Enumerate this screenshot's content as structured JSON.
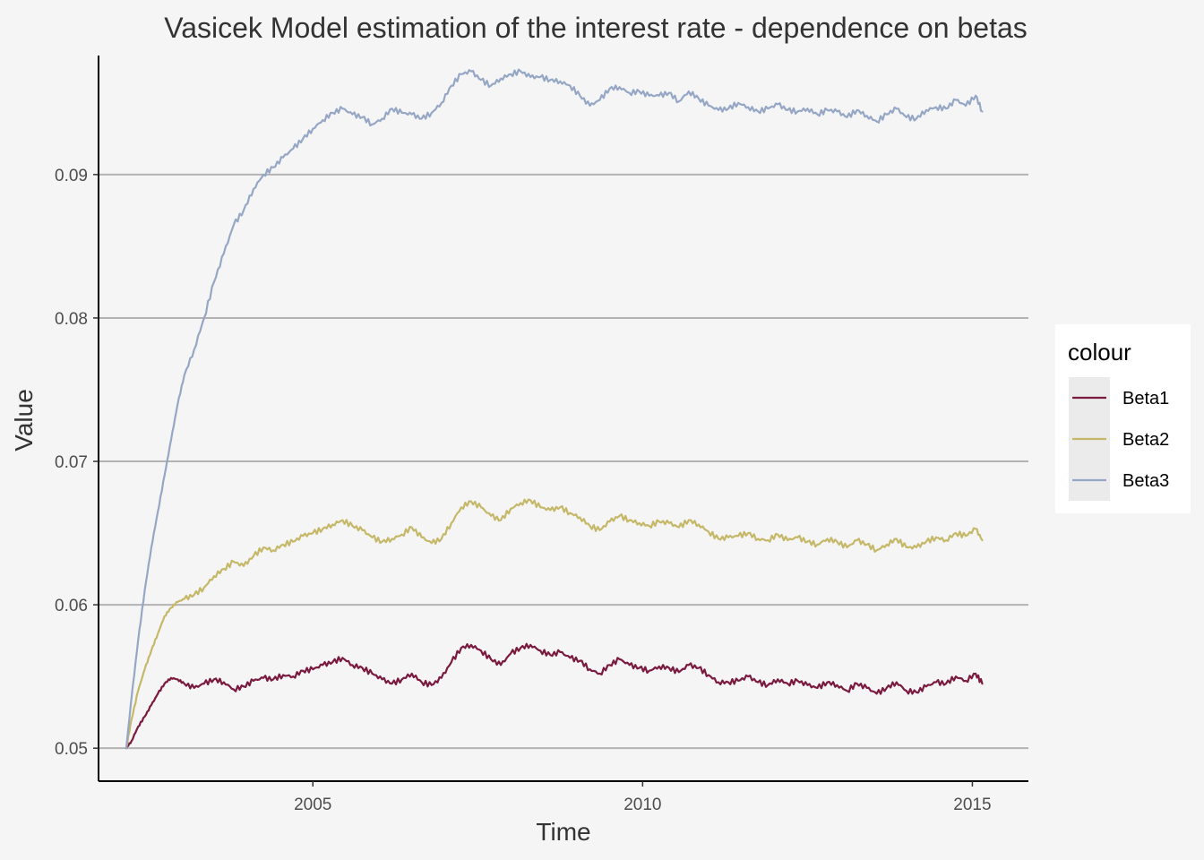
{
  "chart_data": {
    "type": "line",
    "title": "Vasicek Model estimation of the interest rate - dependence on betas",
    "xlabel": "Time",
    "ylabel": "Value",
    "xlim": [
      2001.75,
      2015.85
    ],
    "ylim": [
      0.0477,
      0.0983
    ],
    "x_ticks": [
      2005,
      2010,
      2015
    ],
    "x_tick_labels": [
      "2005",
      "2010",
      "2015"
    ],
    "y_ticks": [
      0.05,
      0.06,
      0.07,
      0.08,
      0.09
    ],
    "y_tick_labels": [
      "0.05",
      "0.06",
      "0.07",
      "0.08",
      "0.09"
    ],
    "grid": "horizontal-major",
    "legend": {
      "title": "colour",
      "position": "right"
    },
    "series": [
      {
        "name": "Beta1",
        "color": "#7b1a3f",
        "x": [
          2002.17,
          2002.25,
          2002.35,
          2002.45,
          2002.55,
          2002.65,
          2002.75,
          2002.85,
          2002.95,
          2003.05,
          2003.2,
          2003.35,
          2003.5,
          2003.65,
          2003.8,
          2003.95,
          2004.1,
          2004.25,
          2004.4,
          2004.55,
          2004.7,
          2004.85,
          2005.0,
          2005.15,
          2005.3,
          2005.45,
          2005.6,
          2005.75,
          2005.9,
          2006.05,
          2006.2,
          2006.35,
          2006.5,
          2006.65,
          2006.8,
          2006.95,
          2007.1,
          2007.25,
          2007.4,
          2007.55,
          2007.7,
          2007.85,
          2008.0,
          2008.15,
          2008.3,
          2008.45,
          2008.6,
          2008.75,
          2008.9,
          2009.05,
          2009.2,
          2009.35,
          2009.5,
          2009.65,
          2009.8,
          2009.95,
          2010.1,
          2010.25,
          2010.4,
          2010.55,
          2010.7,
          2010.85,
          2011.0,
          2011.15,
          2011.3,
          2011.45,
          2011.6,
          2011.75,
          2011.9,
          2012.05,
          2012.2,
          2012.35,
          2012.5,
          2012.65,
          2012.8,
          2012.95,
          2013.1,
          2013.25,
          2013.4,
          2013.55,
          2013.7,
          2013.85,
          2014.0,
          2014.15,
          2014.3,
          2014.45,
          2014.6,
          2014.75,
          2014.9,
          2015.05,
          2015.15
        ],
        "values": [
          0.05,
          0.0505,
          0.0515,
          0.0522,
          0.053,
          0.0538,
          0.0545,
          0.0549,
          0.0548,
          0.0545,
          0.0542,
          0.0545,
          0.0548,
          0.0546,
          0.0541,
          0.0543,
          0.0547,
          0.0549,
          0.0548,
          0.0551,
          0.055,
          0.0554,
          0.0555,
          0.0558,
          0.056,
          0.0563,
          0.0558,
          0.0556,
          0.0552,
          0.0548,
          0.0545,
          0.0548,
          0.0552,
          0.0546,
          0.0544,
          0.0549,
          0.056,
          0.057,
          0.0572,
          0.0568,
          0.0562,
          0.0558,
          0.0566,
          0.057,
          0.0572,
          0.0568,
          0.0565,
          0.0567,
          0.0563,
          0.0561,
          0.0555,
          0.0552,
          0.0558,
          0.0562,
          0.0558,
          0.0556,
          0.0554,
          0.0557,
          0.0556,
          0.0553,
          0.0558,
          0.0556,
          0.0551,
          0.0546,
          0.0546,
          0.0547,
          0.055,
          0.0546,
          0.0544,
          0.0548,
          0.0545,
          0.0547,
          0.0544,
          0.0542,
          0.0546,
          0.0544,
          0.054,
          0.0545,
          0.0542,
          0.0538,
          0.0542,
          0.0546,
          0.054,
          0.0539,
          0.0543,
          0.0546,
          0.0545,
          0.055,
          0.0547,
          0.0552,
          0.0545
        ]
      },
      {
        "name": "Beta2",
        "color": "#c5b869",
        "x": [
          2002.17,
          2002.25,
          2002.35,
          2002.45,
          2002.55,
          2002.65,
          2002.75,
          2002.85,
          2002.95,
          2003.05,
          2003.2,
          2003.35,
          2003.5,
          2003.65,
          2003.8,
          2003.95,
          2004.1,
          2004.25,
          2004.4,
          2004.55,
          2004.7,
          2004.85,
          2005.0,
          2005.15,
          2005.3,
          2005.45,
          2005.6,
          2005.75,
          2005.9,
          2006.05,
          2006.2,
          2006.35,
          2006.5,
          2006.65,
          2006.8,
          2006.95,
          2007.1,
          2007.25,
          2007.4,
          2007.55,
          2007.7,
          2007.85,
          2008.0,
          2008.15,
          2008.3,
          2008.45,
          2008.6,
          2008.75,
          2008.9,
          2009.05,
          2009.2,
          2009.35,
          2009.5,
          2009.65,
          2009.8,
          2009.95,
          2010.1,
          2010.25,
          2010.4,
          2010.55,
          2010.7,
          2010.85,
          2011.0,
          2011.15,
          2011.3,
          2011.45,
          2011.6,
          2011.75,
          2011.9,
          2012.05,
          2012.2,
          2012.35,
          2012.5,
          2012.65,
          2012.8,
          2012.95,
          2013.1,
          2013.25,
          2013.4,
          2013.55,
          2013.7,
          2013.85,
          2014.0,
          2014.15,
          2014.3,
          2014.45,
          2014.6,
          2014.75,
          2014.9,
          2015.05,
          2015.15
        ],
        "values": [
          0.05,
          0.052,
          0.054,
          0.0555,
          0.0568,
          0.058,
          0.0592,
          0.0598,
          0.0602,
          0.0604,
          0.0607,
          0.0612,
          0.062,
          0.0625,
          0.063,
          0.0627,
          0.0634,
          0.064,
          0.0638,
          0.0642,
          0.0644,
          0.0648,
          0.065,
          0.0653,
          0.0656,
          0.0659,
          0.0655,
          0.0652,
          0.0647,
          0.0644,
          0.0646,
          0.0649,
          0.0654,
          0.0647,
          0.0643,
          0.0646,
          0.0657,
          0.0668,
          0.0672,
          0.0668,
          0.0662,
          0.0659,
          0.0667,
          0.0671,
          0.0673,
          0.0668,
          0.0666,
          0.0668,
          0.0664,
          0.0661,
          0.0655,
          0.0652,
          0.0658,
          0.0662,
          0.0659,
          0.0657,
          0.0655,
          0.0658,
          0.0657,
          0.0654,
          0.0659,
          0.0656,
          0.0651,
          0.0646,
          0.0647,
          0.0648,
          0.065,
          0.0646,
          0.0645,
          0.0649,
          0.0645,
          0.0647,
          0.0644,
          0.0642,
          0.0646,
          0.0644,
          0.064,
          0.0645,
          0.0642,
          0.0638,
          0.0642,
          0.0646,
          0.064,
          0.064,
          0.0644,
          0.0647,
          0.0645,
          0.065,
          0.0648,
          0.0653,
          0.0645
        ]
      },
      {
        "name": "Beta3",
        "color": "#96a7c6",
        "x": [
          2002.17,
          2002.25,
          2002.35,
          2002.45,
          2002.55,
          2002.65,
          2002.75,
          2002.85,
          2002.95,
          2003.05,
          2003.2,
          2003.35,
          2003.5,
          2003.65,
          2003.8,
          2003.95,
          2004.1,
          2004.25,
          2004.4,
          2004.55,
          2004.7,
          2004.85,
          2005.0,
          2005.15,
          2005.3,
          2005.45,
          2005.6,
          2005.75,
          2005.9,
          2006.05,
          2006.2,
          2006.35,
          2006.5,
          2006.65,
          2006.8,
          2006.95,
          2007.1,
          2007.25,
          2007.4,
          2007.55,
          2007.7,
          2007.85,
          2008.0,
          2008.15,
          2008.3,
          2008.45,
          2008.6,
          2008.75,
          2008.9,
          2009.05,
          2009.2,
          2009.35,
          2009.5,
          2009.65,
          2009.8,
          2009.95,
          2010.1,
          2010.25,
          2010.4,
          2010.55,
          2010.7,
          2010.85,
          2011.0,
          2011.15,
          2011.3,
          2011.45,
          2011.6,
          2011.75,
          2011.9,
          2012.05,
          2012.2,
          2012.35,
          2012.5,
          2012.65,
          2012.8,
          2012.95,
          2013.1,
          2013.25,
          2013.4,
          2013.55,
          2013.7,
          2013.85,
          2014.0,
          2014.15,
          2014.3,
          2014.45,
          2014.6,
          2014.75,
          2014.9,
          2015.05,
          2015.15
        ],
        "values": [
          0.05,
          0.0535,
          0.0575,
          0.061,
          0.064,
          0.0665,
          0.069,
          0.0715,
          0.074,
          0.076,
          0.0778,
          0.08,
          0.0825,
          0.0845,
          0.0865,
          0.0875,
          0.089,
          0.09,
          0.0905,
          0.0912,
          0.0918,
          0.0925,
          0.0932,
          0.0938,
          0.0943,
          0.0946,
          0.0942,
          0.094,
          0.0935,
          0.0939,
          0.0946,
          0.0943,
          0.0942,
          0.0939,
          0.0943,
          0.095,
          0.0962,
          0.097,
          0.0972,
          0.0966,
          0.0962,
          0.0967,
          0.097,
          0.0972,
          0.0968,
          0.0968,
          0.0966,
          0.0965,
          0.0962,
          0.0955,
          0.0948,
          0.0952,
          0.096,
          0.0961,
          0.0957,
          0.0958,
          0.0955,
          0.0955,
          0.0957,
          0.0951,
          0.0958,
          0.0953,
          0.0948,
          0.0945,
          0.0946,
          0.095,
          0.0947,
          0.0944,
          0.0946,
          0.0949,
          0.0945,
          0.0944,
          0.0946,
          0.0942,
          0.0945,
          0.0944,
          0.094,
          0.0945,
          0.0941,
          0.0937,
          0.0942,
          0.0946,
          0.094,
          0.0939,
          0.0945,
          0.0947,
          0.0946,
          0.0952,
          0.0948,
          0.0955,
          0.0944
        ]
      }
    ]
  }
}
